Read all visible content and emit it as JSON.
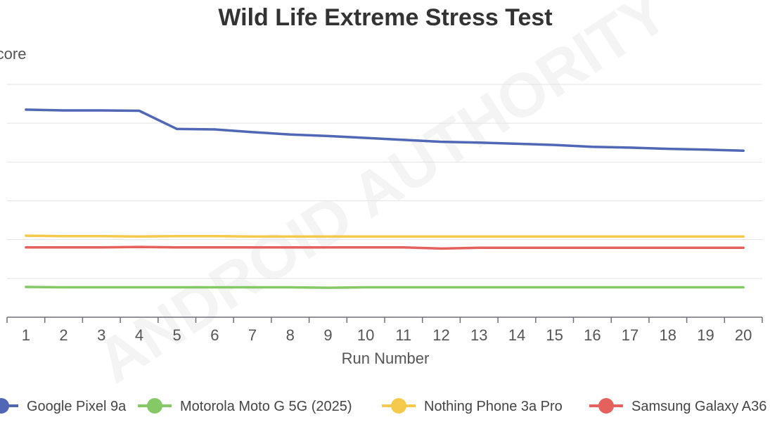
{
  "chart_data": {
    "type": "line",
    "title": "Wild Life Extreme Stress Test",
    "ylabel": "Score",
    "xlabel": "Run Number",
    "categories": [
      "1",
      "2",
      "3",
      "4",
      "5",
      "6",
      "7",
      "8",
      "9",
      "10",
      "11",
      "12",
      "13",
      "14",
      "15",
      "16",
      "17",
      "18",
      "19",
      "20"
    ],
    "ylim": [
      0,
      6
    ],
    "grid": true,
    "legend_position": "bottom",
    "watermark": "ANDROID AUTHORITY",
    "series": [
      {
        "name": "Google Pixel 9a",
        "color": "#4f67b5",
        "values": [
          5.35,
          5.33,
          5.33,
          5.32,
          4.85,
          4.84,
          4.77,
          4.71,
          4.67,
          4.62,
          4.57,
          4.52,
          4.5,
          4.47,
          4.44,
          4.39,
          4.37,
          4.34,
          4.32,
          4.29
        ]
      },
      {
        "name": "Motorola Moto G 5G (2025)",
        "color": "#85c966",
        "values": [
          0.78,
          0.77,
          0.77,
          0.77,
          0.77,
          0.77,
          0.77,
          0.77,
          0.76,
          0.77,
          0.77,
          0.77,
          0.77,
          0.77,
          0.77,
          0.77,
          0.77,
          0.77,
          0.77,
          0.77
        ]
      },
      {
        "name": "Nothing Phone 3a Pro",
        "color": "#f4c94c",
        "values": [
          2.1,
          2.09,
          2.09,
          2.08,
          2.09,
          2.09,
          2.08,
          2.08,
          2.08,
          2.08,
          2.08,
          2.08,
          2.08,
          2.08,
          2.08,
          2.08,
          2.08,
          2.08,
          2.08,
          2.08
        ]
      },
      {
        "name": "Samsung Galaxy A36",
        "color": "#e5615e",
        "values": [
          1.8,
          1.8,
          1.8,
          1.81,
          1.8,
          1.8,
          1.8,
          1.8,
          1.8,
          1.8,
          1.8,
          1.77,
          1.79,
          1.79,
          1.79,
          1.79,
          1.79,
          1.79,
          1.79,
          1.79
        ]
      }
    ]
  }
}
